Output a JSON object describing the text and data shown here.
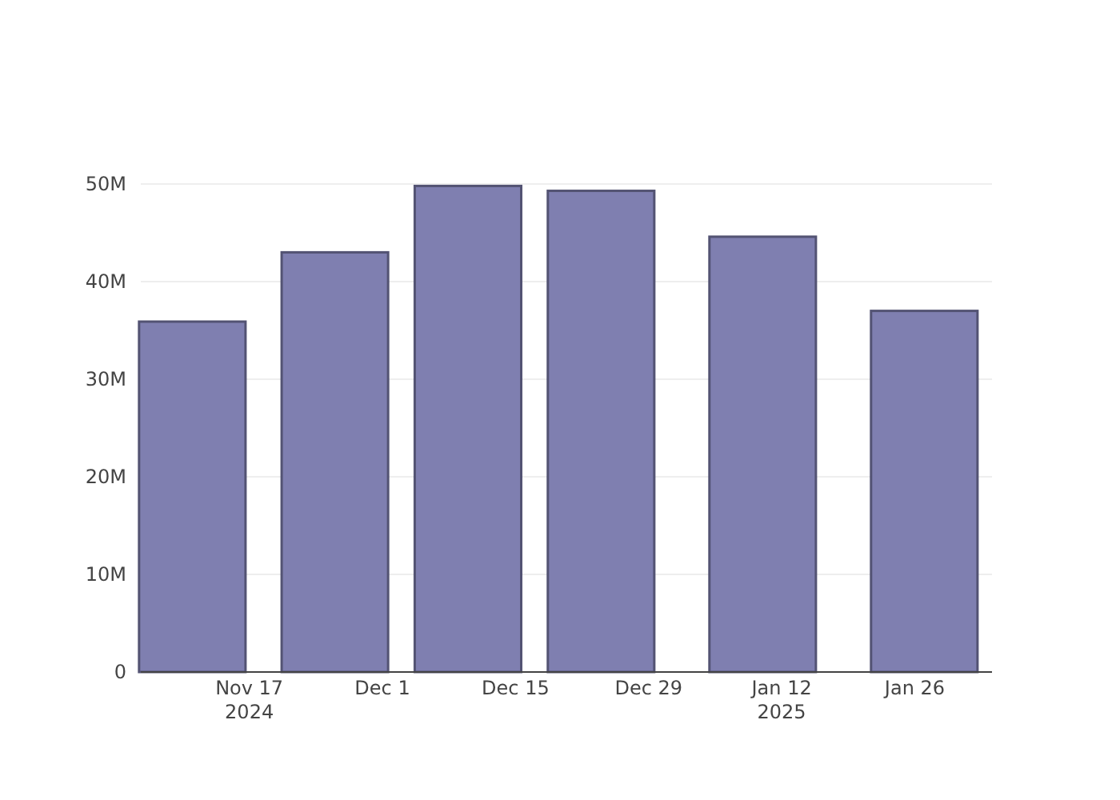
{
  "chart_data": {
    "type": "bar",
    "x": [
      "2024-11-11",
      "2024-11-26",
      "2024-12-10",
      "2024-12-24",
      "2025-01-10",
      "2025-01-27"
    ],
    "values": [
      35900000,
      43000000,
      49800000,
      49300000,
      44600000,
      37000000
    ],
    "color": "#7f7fb0",
    "xlim": [
      "2024-11-05T14:00",
      "2025-02-03T03:00"
    ],
    "xticks": [
      {
        "value": "2024-11-17",
        "label": "Nov 17\n2024"
      },
      {
        "value": "2024-12-01",
        "label": "Dec 1"
      },
      {
        "value": "2024-12-15",
        "label": "Dec 15"
      },
      {
        "value": "2024-12-29",
        "label": "Dec 29"
      },
      {
        "value": "2025-01-12",
        "label": "Jan 12\n2025"
      },
      {
        "value": "2025-01-26",
        "label": "Jan 26"
      }
    ],
    "ylim": [
      0,
      50000000
    ],
    "yticks": [
      0,
      {
        "value": 10000000,
        "label": "10M"
      },
      {
        "value": 20000000,
        "label": "20M"
      },
      {
        "value": 30000000,
        "label": "30M"
      },
      {
        "value": 40000000,
        "label": "40M"
      },
      {
        "value": 50000000,
        "label": "50M"
      }
    ],
    "grid": "y"
  }
}
